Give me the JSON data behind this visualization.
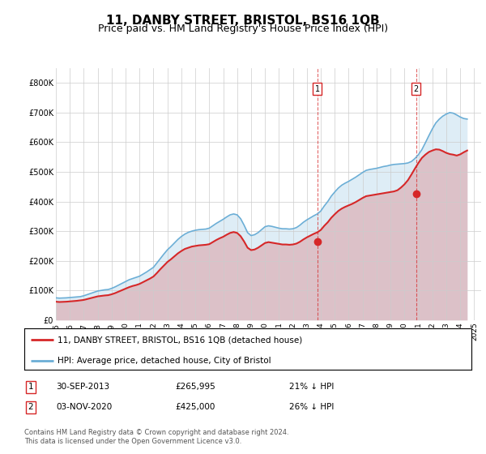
{
  "title": "11, DANBY STREET, BRISTOL, BS16 1QB",
  "subtitle": "Price paid vs. HM Land Registry's House Price Index (HPI)",
  "title_fontsize": 11,
  "subtitle_fontsize": 9,
  "hpi_color": "#6baed6",
  "price_color": "#d62728",
  "annotation_color": "#d62728",
  "background_color": "#ffffff",
  "grid_color": "#cccccc",
  "ylim": [
    0,
    850000
  ],
  "yticks": [
    0,
    100000,
    200000,
    300000,
    400000,
    500000,
    600000,
    700000,
    800000
  ],
  "footnote": "Contains HM Land Registry data © Crown copyright and database right 2024.\nThis data is licensed under the Open Government Licence v3.0.",
  "legend_entries": [
    "11, DANBY STREET, BRISTOL, BS16 1QB (detached house)",
    "HPI: Average price, detached house, City of Bristol"
  ],
  "annotations": [
    {
      "label": "1",
      "year": 2013.75,
      "price": 265995,
      "text_date": "30-SEP-2013",
      "text_price": "£265,995",
      "text_pct": "21% ↓ HPI"
    },
    {
      "label": "2",
      "year": 2020.83,
      "price": 425000,
      "text_date": "03-NOV-2020",
      "text_price": "£425,000",
      "text_pct": "26% ↓ HPI"
    }
  ],
  "hpi_years": [
    1995.0,
    1995.25,
    1995.5,
    1995.75,
    1996.0,
    1996.25,
    1996.5,
    1996.75,
    1997.0,
    1997.25,
    1997.5,
    1997.75,
    1998.0,
    1998.25,
    1998.5,
    1998.75,
    1999.0,
    1999.25,
    1999.5,
    1999.75,
    2000.0,
    2000.25,
    2000.5,
    2000.75,
    2001.0,
    2001.25,
    2001.5,
    2001.75,
    2002.0,
    2002.25,
    2002.5,
    2002.75,
    2003.0,
    2003.25,
    2003.5,
    2003.75,
    2004.0,
    2004.25,
    2004.5,
    2004.75,
    2005.0,
    2005.25,
    2005.5,
    2005.75,
    2006.0,
    2006.25,
    2006.5,
    2006.75,
    2007.0,
    2007.25,
    2007.5,
    2007.75,
    2008.0,
    2008.25,
    2008.5,
    2008.75,
    2009.0,
    2009.25,
    2009.5,
    2009.75,
    2010.0,
    2010.25,
    2010.5,
    2010.75,
    2011.0,
    2011.25,
    2011.5,
    2011.75,
    2012.0,
    2012.25,
    2012.5,
    2012.75,
    2013.0,
    2013.25,
    2013.5,
    2013.75,
    2014.0,
    2014.25,
    2014.5,
    2014.75,
    2015.0,
    2015.25,
    2015.5,
    2015.75,
    2016.0,
    2016.25,
    2016.5,
    2016.75,
    2017.0,
    2017.25,
    2017.5,
    2017.75,
    2018.0,
    2018.25,
    2018.5,
    2018.75,
    2019.0,
    2019.25,
    2019.5,
    2019.75,
    2020.0,
    2020.25,
    2020.5,
    2020.75,
    2021.0,
    2021.25,
    2021.5,
    2021.75,
    2022.0,
    2022.25,
    2022.5,
    2022.75,
    2023.0,
    2023.25,
    2023.5,
    2023.75,
    2024.0,
    2024.25,
    2024.5
  ],
  "hpi_vals": [
    75000,
    74000,
    74500,
    75000,
    76000,
    77000,
    78000,
    79000,
    82000,
    86000,
    90000,
    94000,
    98000,
    100000,
    102000,
    103000,
    107000,
    112000,
    118000,
    124000,
    130000,
    136000,
    140000,
    144000,
    148000,
    155000,
    162000,
    170000,
    178000,
    193000,
    208000,
    223000,
    237000,
    248000,
    260000,
    272000,
    282000,
    290000,
    296000,
    300000,
    303000,
    305000,
    306000,
    307000,
    310000,
    318000,
    326000,
    333000,
    340000,
    348000,
    355000,
    358000,
    355000,
    342000,
    320000,
    295000,
    285000,
    288000,
    295000,
    305000,
    315000,
    318000,
    316000,
    313000,
    310000,
    308000,
    308000,
    307000,
    308000,
    312000,
    320000,
    330000,
    338000,
    345000,
    352000,
    358000,
    368000,
    385000,
    400000,
    418000,
    432000,
    445000,
    455000,
    462000,
    468000,
    475000,
    482000,
    490000,
    498000,
    505000,
    508000,
    510000,
    512000,
    515000,
    518000,
    520000,
    523000,
    525000,
    526000,
    527000,
    528000,
    530000,
    535000,
    545000,
    558000,
    575000,
    598000,
    622000,
    645000,
    665000,
    678000,
    688000,
    695000,
    700000,
    698000,
    692000,
    685000,
    680000,
    678000
  ],
  "price_years": [
    1995.0,
    1995.25,
    1995.5,
    1995.75,
    1996.0,
    1996.25,
    1996.5,
    1996.75,
    1997.0,
    1997.25,
    1997.5,
    1997.75,
    1998.0,
    1998.25,
    1998.5,
    1998.75,
    1999.0,
    1999.25,
    1999.5,
    1999.75,
    2000.0,
    2000.25,
    2000.5,
    2000.75,
    2001.0,
    2001.25,
    2001.5,
    2001.75,
    2002.0,
    2002.25,
    2002.5,
    2002.75,
    2003.0,
    2003.25,
    2003.5,
    2003.75,
    2004.0,
    2004.25,
    2004.5,
    2004.75,
    2005.0,
    2005.25,
    2005.5,
    2005.75,
    2006.0,
    2006.25,
    2006.5,
    2006.75,
    2007.0,
    2007.25,
    2007.5,
    2007.75,
    2008.0,
    2008.25,
    2008.5,
    2008.75,
    2009.0,
    2009.25,
    2009.5,
    2009.75,
    2010.0,
    2010.25,
    2010.5,
    2010.75,
    2011.0,
    2011.25,
    2011.5,
    2011.75,
    2012.0,
    2012.25,
    2012.5,
    2012.75,
    2013.0,
    2013.25,
    2013.5,
    2013.75,
    2014.0,
    2014.25,
    2014.5,
    2014.75,
    2015.0,
    2015.25,
    2015.5,
    2015.75,
    2016.0,
    2016.25,
    2016.5,
    2016.75,
    2017.0,
    2017.25,
    2017.5,
    2017.75,
    2018.0,
    2018.25,
    2018.5,
    2018.75,
    2019.0,
    2019.25,
    2019.5,
    2019.75,
    2020.0,
    2020.25,
    2020.5,
    2020.75,
    2021.0,
    2021.25,
    2021.5,
    2021.75,
    2022.0,
    2022.25,
    2022.5,
    2022.75,
    2023.0,
    2023.25,
    2023.5,
    2023.75,
    2024.0,
    2024.25,
    2024.5
  ],
  "price_vals": [
    62000,
    61000,
    61500,
    62000,
    63000,
    64000,
    65000,
    66500,
    68000,
    71000,
    74000,
    77000,
    80000,
    81500,
    83000,
    84000,
    87000,
    91000,
    96000,
    101000,
    106000,
    111000,
    115000,
    118000,
    122000,
    128000,
    134000,
    140000,
    147000,
    159000,
    172000,
    184000,
    196000,
    205000,
    215000,
    225000,
    233000,
    240000,
    244000,
    248000,
    250000,
    252000,
    253000,
    254000,
    256000,
    263000,
    270000,
    276000,
    281000,
    288000,
    294000,
    297000,
    294000,
    283000,
    265000,
    244000,
    236000,
    238000,
    244000,
    252000,
    260000,
    263000,
    261000,
    259000,
    257000,
    255000,
    255000,
    254000,
    255000,
    258000,
    264000,
    272000,
    279000,
    285000,
    291000,
    296000,
    304000,
    318000,
    330000,
    345000,
    357000,
    368000,
    376000,
    382000,
    387000,
    392000,
    398000,
    405000,
    412000,
    418000,
    420000,
    422000,
    424000,
    426000,
    428000,
    430000,
    432000,
    434000,
    438000,
    447000,
    458000,
    472000,
    491000,
    511000,
    530000,
    547000,
    558000,
    567000,
    572000,
    576000,
    575000,
    570000,
    564000,
    560000,
    558000,
    555000,
    559000,
    566000,
    572000
  ],
  "xlim": [
    1995,
    2025.5
  ],
  "xticks": [
    1995,
    1996,
    1997,
    1998,
    1999,
    2000,
    2001,
    2002,
    2003,
    2004,
    2005,
    2006,
    2007,
    2008,
    2009,
    2010,
    2011,
    2012,
    2013,
    2014,
    2015,
    2016,
    2017,
    2018,
    2019,
    2020,
    2021,
    2022,
    2023,
    2024,
    2025
  ]
}
